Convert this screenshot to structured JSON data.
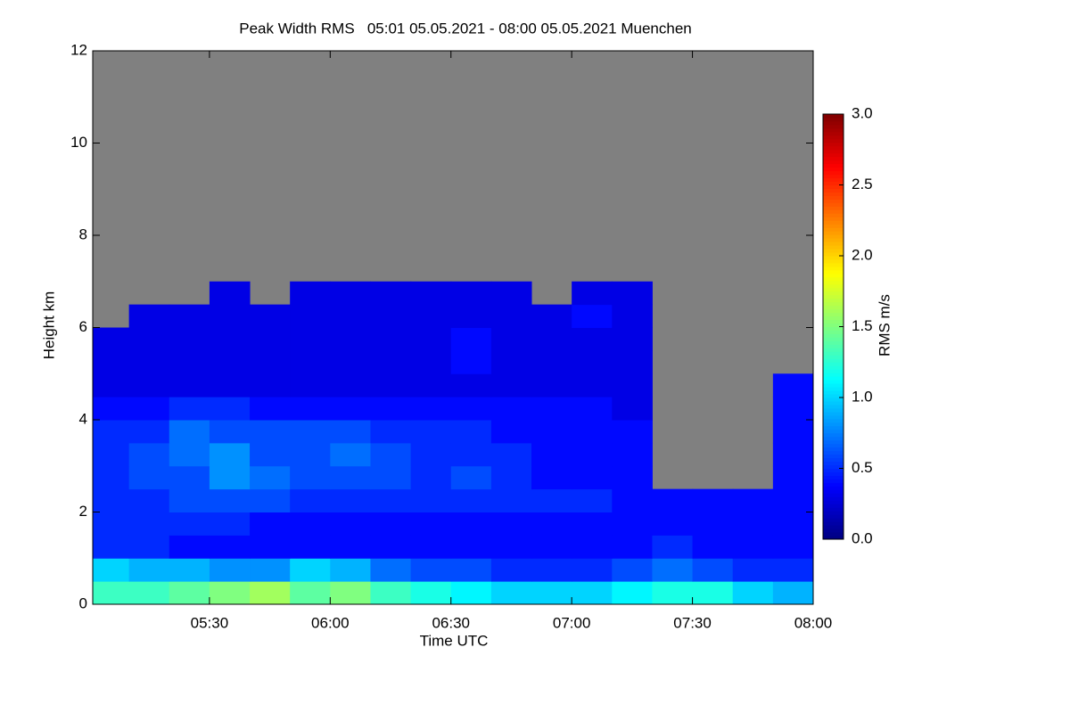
{
  "chart_data": {
    "type": "heatmap",
    "title": "Peak Width RMS   05:01 05.05.2021 - 08:00 05.05.2021 Muenchen",
    "x_label": "Time UTC",
    "y_label": "Height km",
    "colorbar_label": "RMS m/s",
    "xlim": [
      5.0167,
      8.0
    ],
    "xticks": [
      {
        "value": 5.5,
        "label": "05:30"
      },
      {
        "value": 6.0,
        "label": "06:00"
      },
      {
        "value": 6.5,
        "label": "06:30"
      },
      {
        "value": 7.0,
        "label": "07:00"
      },
      {
        "value": 7.5,
        "label": "07:30"
      },
      {
        "value": 8.0,
        "label": "08:00"
      }
    ],
    "ylim": [
      0,
      12
    ],
    "yticks": [
      0,
      2,
      4,
      6,
      8,
      10,
      12
    ],
    "zlim": [
      0,
      3
    ],
    "zticks": [
      {
        "value": 0,
        "label": "0.0"
      },
      {
        "value": 0.5,
        "label": "0.5"
      },
      {
        "value": 1,
        "label": "1.0"
      },
      {
        "value": 1.5,
        "label": "1.5"
      },
      {
        "value": 2,
        "label": "2.0"
      },
      {
        "value": 2.5,
        "label": "2.5"
      },
      {
        "value": 3,
        "label": "3.0"
      }
    ],
    "x": [
      5.0167,
      5.1667,
      5.3333,
      5.5,
      5.6667,
      5.8333,
      6.0,
      6.1667,
      6.3333,
      6.5,
      6.6667,
      6.8333,
      7.0,
      7.1667,
      7.3333,
      7.5,
      7.6667,
      7.8333,
      8.0
    ],
    "y": [
      0,
      0.5,
      1,
      1.5,
      2,
      2.5,
      3,
      3.5,
      4,
      4.5,
      5,
      5.5,
      6,
      6.5,
      7
    ],
    "z": [
      [
        1.3,
        1.3,
        1.4,
        1.5,
        1.6,
        1.4,
        1.5,
        1.3,
        1.2,
        1.1,
        1.0,
        1.0,
        1.0,
        1.1,
        1.2,
        1.2,
        1.0,
        0.9
      ],
      [
        1.0,
        0.9,
        0.9,
        0.8,
        0.8,
        1.0,
        0.9,
        0.7,
        0.6,
        0.6,
        0.5,
        0.5,
        0.5,
        0.6,
        0.7,
        0.6,
        0.5,
        0.5
      ],
      [
        0.5,
        0.5,
        0.4,
        0.4,
        0.4,
        0.4,
        0.4,
        0.4,
        0.4,
        0.4,
        0.4,
        0.4,
        0.4,
        0.4,
        0.5,
        0.4,
        0.4,
        0.4
      ],
      [
        0.5,
        0.5,
        0.5,
        0.5,
        0.4,
        0.4,
        0.4,
        0.4,
        0.4,
        0.4,
        0.4,
        0.4,
        0.4,
        0.4,
        0.4,
        0.4,
        0.4,
        0.4
      ],
      [
        0.5,
        0.5,
        0.6,
        0.6,
        0.6,
        0.5,
        0.5,
        0.5,
        0.5,
        0.5,
        0.5,
        0.5,
        0.5,
        0.4,
        0.4,
        0.4,
        0.4,
        0.4
      ],
      [
        0.5,
        0.6,
        0.6,
        0.8,
        0.7,
        0.6,
        0.6,
        0.6,
        0.5,
        0.6,
        0.5,
        0.4,
        0.4,
        0.4,
        null,
        null,
        null,
        0.4
      ],
      [
        0.5,
        0.6,
        0.7,
        0.8,
        0.6,
        0.6,
        0.7,
        0.6,
        0.5,
        0.5,
        0.5,
        0.4,
        0.4,
        0.4,
        null,
        null,
        null,
        0.4
      ],
      [
        0.5,
        0.5,
        0.7,
        0.6,
        0.6,
        0.6,
        0.6,
        0.5,
        0.5,
        0.5,
        0.4,
        0.4,
        0.4,
        0.4,
        null,
        null,
        null,
        0.4
      ],
      [
        0.4,
        0.4,
        0.5,
        0.5,
        0.4,
        0.4,
        0.4,
        0.4,
        0.4,
        0.4,
        0.4,
        0.4,
        0.4,
        0.3,
        null,
        null,
        null,
        0.4
      ],
      [
        0.3,
        0.3,
        0.3,
        0.3,
        0.3,
        0.3,
        0.3,
        0.3,
        0.3,
        0.3,
        0.3,
        0.3,
        0.3,
        0.3,
        null,
        null,
        null,
        0.4
      ],
      [
        0.3,
        0.3,
        0.3,
        0.3,
        0.3,
        0.3,
        0.3,
        0.3,
        0.3,
        0.4,
        0.3,
        0.3,
        0.3,
        0.3,
        null,
        null,
        null,
        null
      ],
      [
        0.3,
        0.3,
        0.3,
        0.3,
        0.3,
        0.3,
        0.3,
        0.3,
        0.3,
        0.4,
        0.3,
        0.3,
        0.3,
        0.3,
        null,
        null,
        null,
        null
      ],
      [
        null,
        0.3,
        0.3,
        0.3,
        0.3,
        0.3,
        0.3,
        0.3,
        0.3,
        0.3,
        0.3,
        0.3,
        0.4,
        0.3,
        null,
        null,
        null,
        null
      ],
      [
        null,
        null,
        null,
        0.3,
        null,
        0.3,
        0.3,
        0.3,
        0.3,
        0.3,
        0.3,
        null,
        0.3,
        0.3,
        null,
        null,
        null,
        null
      ]
    ]
  }
}
